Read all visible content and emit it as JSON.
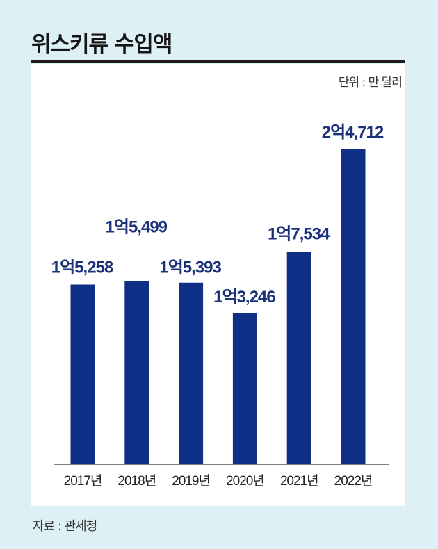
{
  "chart_data": {
    "type": "bar",
    "title": "위스키류 수입액",
    "unit_label": "단위 : 만 달러",
    "source": "자료 : 관세청",
    "categories": [
      "2017년",
      "2018년",
      "2019년",
      "2020년",
      "2021년",
      "2022년"
    ],
    "values": [
      15258,
      15499,
      15393,
      13246,
      17534,
      24712
    ],
    "value_labels": [
      "1억5,258",
      "1억5,499",
      "1억5,393",
      "1억3,246",
      "1억7,534",
      "2억4,712"
    ],
    "xlabel": "",
    "ylabel": "",
    "ylim": [
      2700,
      27000
    ],
    "grid": false,
    "bar_color": "#0f2f86",
    "label_color": "#1b3278"
  }
}
